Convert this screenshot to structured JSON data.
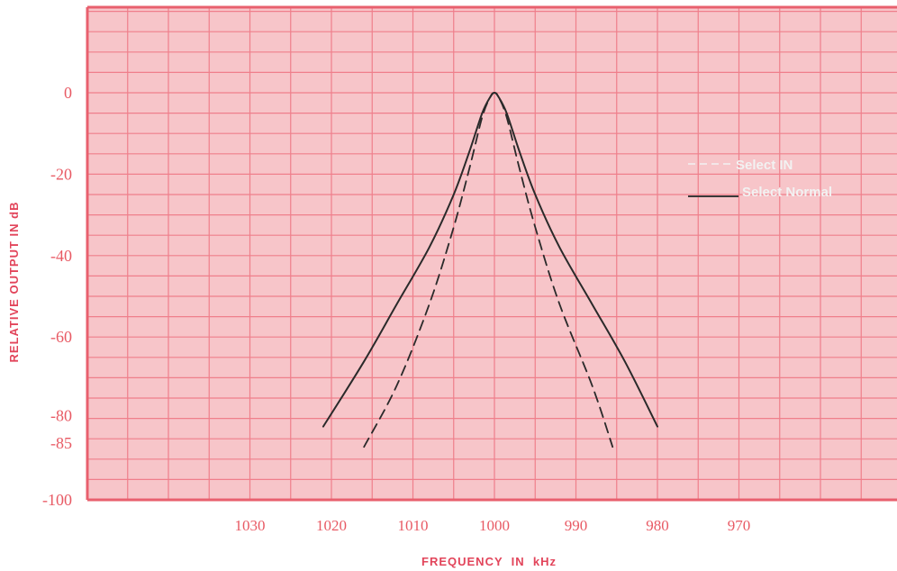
{
  "chart_data": {
    "type": "line",
    "xlabel": "FREQUENCY  IN  kHz",
    "ylabel": "RELATIVE OUTPUT IN dB",
    "xlim": [
      1040,
      960
    ],
    "ylim": [
      -100,
      10
    ],
    "x_reversed": true,
    "y_ticks": [
      {
        "value": 0,
        "label": "0"
      },
      {
        "value": -20,
        "label": "-20"
      },
      {
        "value": -40,
        "label": "-40"
      },
      {
        "value": -60,
        "label": "-60"
      },
      {
        "value": -80,
        "label": "-80"
      },
      {
        "value": -85,
        "label": "-85"
      },
      {
        "value": -100,
        "label": "-100"
      }
    ],
    "x_ticks": [
      {
        "value": 1030,
        "label": "1030"
      },
      {
        "value": 1020,
        "label": "1020"
      },
      {
        "value": 1010,
        "label": "1010"
      },
      {
        "value": 1000,
        "label": "1000"
      },
      {
        "value": 990,
        "label": "990"
      },
      {
        "value": 980,
        "label": "980"
      },
      {
        "value": 970,
        "label": "970"
      }
    ],
    "grid": true,
    "legend_position": "right",
    "series": [
      {
        "name": "Select IN",
        "style": "dashed",
        "color": "#2a2a2a",
        "x": [
          1016,
          1012,
          1008,
          1005,
          1003,
          1001.5,
          1000.5,
          1000,
          999.5,
          998.5,
          997,
          995,
          992,
          988,
          985.5
        ],
        "y": [
          -87,
          -72,
          -52,
          -33,
          -18,
          -6,
          -1,
          0,
          -1,
          -6,
          -18,
          -33,
          -52,
          -72,
          -87
        ]
      },
      {
        "name": "Select Normal",
        "style": "solid",
        "color": "#2a2a2a",
        "x": [
          1021,
          1016,
          1012,
          1008,
          1005,
          1003,
          1001.5,
          1000.5,
          1000,
          999.5,
          998.5,
          997,
          995,
          992,
          988,
          984,
          980
        ],
        "y": [
          -82,
          -66,
          -52,
          -38,
          -25,
          -14,
          -5,
          -1,
          0,
          -1,
          -5,
          -14,
          -25,
          -38,
          -52,
          -66,
          -82
        ]
      }
    ]
  },
  "colors": {
    "paper": "#f7c5c9",
    "grid": "#ef7f8b",
    "frame": "#e8606e",
    "label": "#e85a64"
  }
}
